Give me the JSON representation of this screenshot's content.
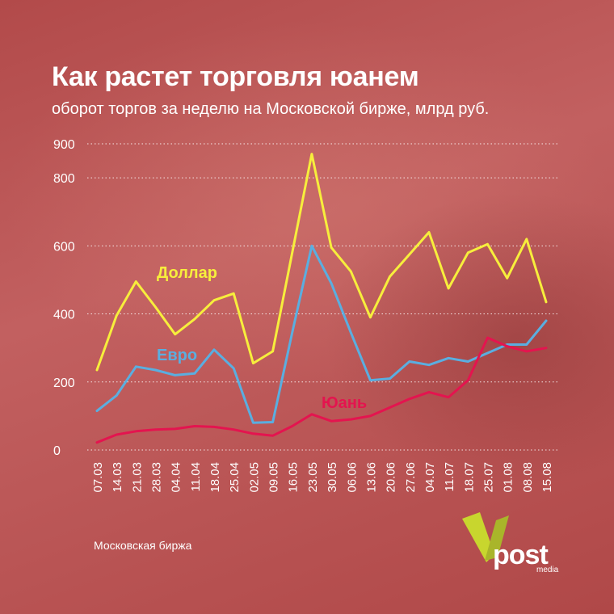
{
  "title": "Как растет торговля юанем",
  "subtitle": "оборот торгов за неделю на Московской бирже, млрд руб.",
  "source": "Московская биржа",
  "logo": {
    "text": "post",
    "subtext": "media"
  },
  "colors": {
    "dollar": "#f7ee3c",
    "euro": "#5aaee0",
    "yuan": "#e4144f",
    "gridline": "#ffffff",
    "text": "#ffffff",
    "logo_accent": "#c8d62e"
  },
  "chart_data": {
    "type": "line",
    "categories": [
      "07.03",
      "14.03",
      "21.03",
      "28.03",
      "04.04",
      "11.04",
      "18.04",
      "25.04",
      "02.05",
      "09.05",
      "16.05",
      "23.05",
      "30.05",
      "06.06",
      "13.06",
      "20.06",
      "27.06",
      "04.07",
      "11.07",
      "18.07",
      "25.07",
      "01.08",
      "08.08",
      "15.08"
    ],
    "yticks": [
      "0",
      "200",
      "400",
      "600",
      "800",
      "900"
    ],
    "ylim": [
      0,
      900
    ],
    "grid": true,
    "series": [
      {
        "name": "Доллар",
        "color": "#f7ee3c",
        "values": [
          235,
          395,
          495,
          420,
          340,
          385,
          440,
          460,
          255,
          290,
          580,
          870,
          595,
          525,
          390,
          510,
          575,
          640,
          475,
          580,
          605,
          505,
          620,
          435
        ]
      },
      {
        "name": "Евро",
        "color": "#5aaee0",
        "values": [
          115,
          160,
          245,
          235,
          220,
          225,
          295,
          240,
          80,
          82,
          345,
          600,
          490,
          345,
          205,
          210,
          260,
          250,
          270,
          260,
          285,
          310,
          310,
          380
        ]
      },
      {
        "name": "Юань",
        "color": "#e4144f",
        "values": [
          22,
          45,
          55,
          60,
          62,
          70,
          68,
          60,
          48,
          42,
          70,
          105,
          85,
          90,
          100,
          125,
          150,
          170,
          155,
          205,
          330,
          305,
          290,
          300
        ]
      }
    ]
  }
}
